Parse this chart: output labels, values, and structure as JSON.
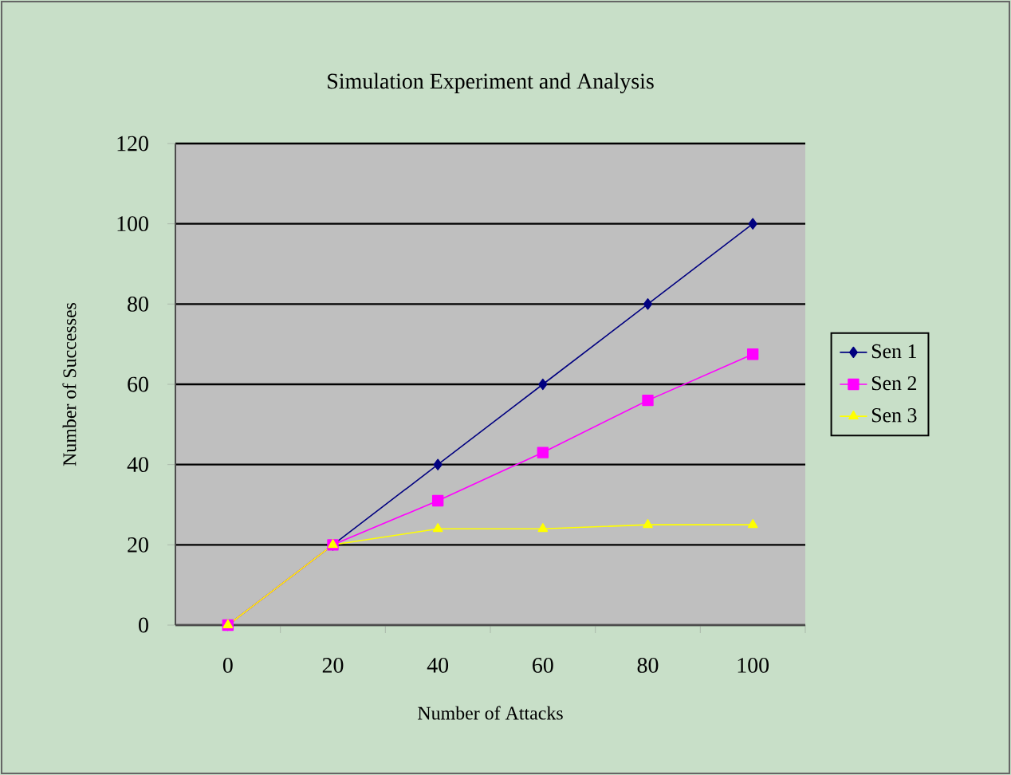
{
  "chart_data": {
    "type": "line",
    "title": "Simulation Experiment and Analysis",
    "xlabel": "Number of Attacks",
    "ylabel": "Number of Successes",
    "categories": [
      "0",
      "20",
      "40",
      "60",
      "80",
      "100"
    ],
    "series": [
      {
        "name": "Sen 1",
        "color": "#000080",
        "marker": "diamond",
        "values": [
          0,
          20,
          40,
          60,
          80,
          100
        ]
      },
      {
        "name": "Sen 2",
        "color": "#ff00ff",
        "marker": "square",
        "values": [
          0,
          20,
          31,
          43,
          56,
          67.5
        ]
      },
      {
        "name": "Sen 3",
        "color": "#ffff00",
        "marker": "triangle",
        "values": [
          0,
          20,
          24,
          24,
          25,
          25
        ]
      }
    ],
    "ylim": [
      0,
      120
    ],
    "yticks": [
      0,
      20,
      40,
      60,
      80,
      100,
      120
    ],
    "grid": "y",
    "legend": "right",
    "line_style": "solid"
  }
}
